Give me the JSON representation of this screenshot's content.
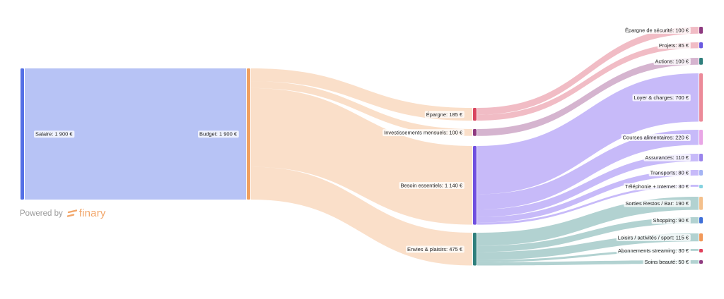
{
  "branding": {
    "powered_by": "Powered by",
    "brand_name": "finary",
    "brand_color": "#f2a66a"
  },
  "chart_data": {
    "type": "sankey",
    "unit": "€",
    "nodes": [
      {
        "id": "salaire",
        "label": "Salaire: 1 900 €",
        "value": 1900,
        "color": "#5470e6"
      },
      {
        "id": "budget",
        "label": "Budget: 1 900 €",
        "value": 1900,
        "color": "#f0a060"
      },
      {
        "id": "epargne",
        "label": "Épargne: 185 €",
        "value": 185,
        "color": "#d9455f"
      },
      {
        "id": "investissements",
        "label": "Investissements mensuels: 100 €",
        "value": 100,
        "color": "#8e3a80"
      },
      {
        "id": "besoins",
        "label": "Besoin essentiels: 1 140 €",
        "value": 1140,
        "color": "#6f4fe0"
      },
      {
        "id": "envies",
        "label": "Envies & plaisirs: 475 €",
        "value": 475,
        "color": "#2f7f7c"
      },
      {
        "id": "epargne_securite",
        "label": "Épargne de sécurité: 100 €",
        "value": 100,
        "color": "#8e3a80"
      },
      {
        "id": "projets",
        "label": "Projets: 85 €",
        "value": 85,
        "color": "#6a5ae0"
      },
      {
        "id": "actions",
        "label": "Actions: 100 €",
        "value": 100,
        "color": "#2f7f7c"
      },
      {
        "id": "loyer",
        "label": "Loyer & charges: 700 €",
        "value": 700,
        "color": "#ec8a99"
      },
      {
        "id": "courses",
        "label": "Courses alimentaires: 220 €",
        "value": 220,
        "color": "#e9a6e6"
      },
      {
        "id": "assurances",
        "label": "Assurances: 110 €",
        "value": 110,
        "color": "#9a84ec"
      },
      {
        "id": "transports",
        "label": "Transports: 80 €",
        "value": 80,
        "color": "#a4b4f4"
      },
      {
        "id": "telephonie",
        "label": "Téléphonie + Internet: 30 €",
        "value": 30,
        "color": "#86d3e0"
      },
      {
        "id": "sorties",
        "label": "Sorties Restos / Bar: 190 €",
        "value": 190,
        "color": "#f4c08c"
      },
      {
        "id": "shopping",
        "label": "Shopping: 90 €",
        "value": 90,
        "color": "#3f6fd8"
      },
      {
        "id": "loisirs",
        "label": "Loisirs / activités / sport: 115 €",
        "value": 115,
        "color": "#f2995a"
      },
      {
        "id": "abonnements",
        "label": "Abonnements streaming: 30 €",
        "value": 30,
        "color": "#e0405c"
      },
      {
        "id": "soins",
        "label": "Soins beauté: 50 €",
        "value": 50,
        "color": "#8e3a80"
      }
    ],
    "links": [
      {
        "source": "salaire",
        "target": "budget",
        "value": 1900
      },
      {
        "source": "budget",
        "target": "epargne",
        "value": 185
      },
      {
        "source": "budget",
        "target": "investissements",
        "value": 100
      },
      {
        "source": "budget",
        "target": "besoins",
        "value": 1140
      },
      {
        "source": "budget",
        "target": "envies",
        "value": 475
      },
      {
        "source": "epargne",
        "target": "epargne_securite",
        "value": 100
      },
      {
        "source": "epargne",
        "target": "projets",
        "value": 85
      },
      {
        "source": "investissements",
        "target": "actions",
        "value": 100
      },
      {
        "source": "besoins",
        "target": "loyer",
        "value": 700
      },
      {
        "source": "besoins",
        "target": "courses",
        "value": 220
      },
      {
        "source": "besoins",
        "target": "assurances",
        "value": 110
      },
      {
        "source": "besoins",
        "target": "transports",
        "value": 80
      },
      {
        "source": "besoins",
        "target": "telephonie",
        "value": 30
      },
      {
        "source": "envies",
        "target": "sorties",
        "value": 190
      },
      {
        "source": "envies",
        "target": "shopping",
        "value": 90
      },
      {
        "source": "envies",
        "target": "loisirs",
        "value": 115
      },
      {
        "source": "envies",
        "target": "abonnements",
        "value": 30
      },
      {
        "source": "envies",
        "target": "soins",
        "value": 50
      }
    ]
  }
}
